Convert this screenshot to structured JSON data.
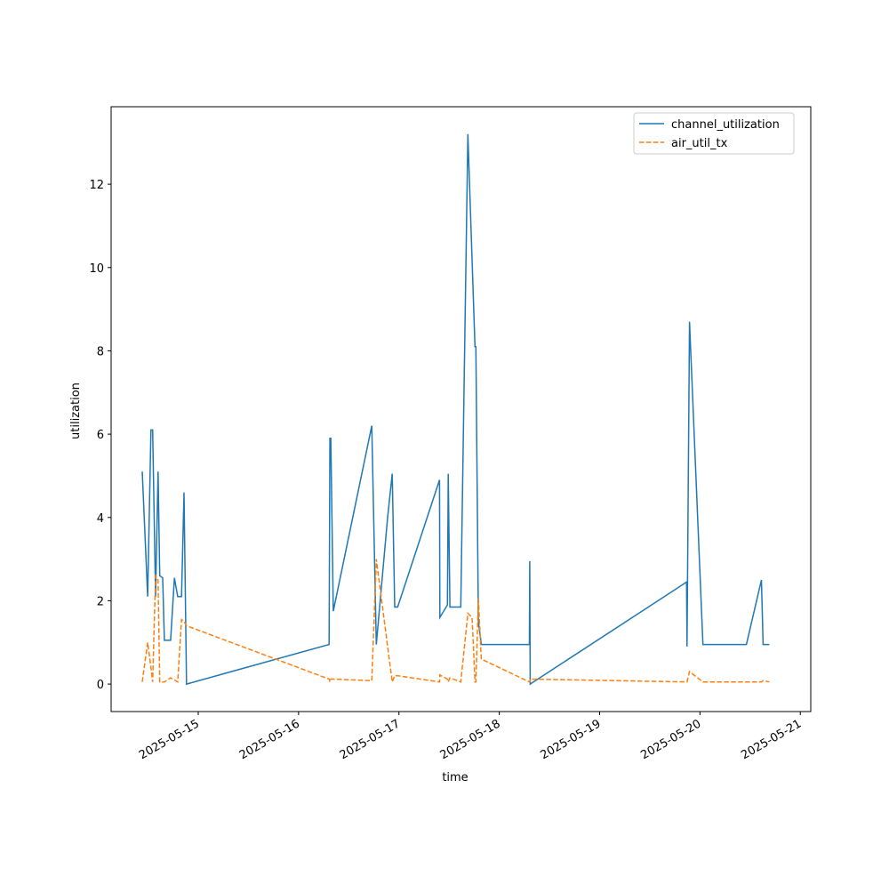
{
  "chart_data": {
    "type": "line",
    "xlabel": "time",
    "ylabel": "utilization",
    "x": [
      "2025-05-14T10:36",
      "2025-05-14T11:54",
      "2025-05-14T12:42",
      "2025-05-14T13:06",
      "2025-05-14T13:48",
      "2025-05-14T14:24",
      "2025-05-14T14:48",
      "2025-05-14T15:30",
      "2025-05-14T15:54",
      "2025-05-14T17:24",
      "2025-05-14T18:18",
      "2025-05-14T19:06",
      "2025-05-14T20:00",
      "2025-05-14T20:36",
      "2025-05-14T21:12",
      "2025-05-16T07:18",
      "2025-05-16T07:30",
      "2025-05-16T07:42",
      "2025-05-16T08:18",
      "2025-05-16T17:30",
      "2025-05-16T18:36",
      "2025-05-16T21:18",
      "2025-05-16T22:24",
      "2025-05-16T23:00",
      "2025-05-16T23:42",
      "2025-05-17T09:42",
      "2025-05-17T09:48",
      "2025-05-17T11:36",
      "2025-05-17T11:48",
      "2025-05-17T12:12",
      "2025-05-17T14:48",
      "2025-05-17T16:30",
      "2025-05-17T17:30",
      "2025-05-17T18:12",
      "2025-05-17T18:24",
      "2025-05-17T19:00",
      "2025-05-17T19:42",
      "2025-05-18T07:12",
      "2025-05-18T07:18",
      "2025-05-18T07:24",
      "2025-05-19T20:48",
      "2025-05-19T20:54",
      "2025-05-19T21:30",
      "2025-05-20T00:42",
      "2025-05-20T11:06",
      "2025-05-20T14:42",
      "2025-05-20T15:06",
      "2025-05-20T16:36"
    ],
    "series": [
      {
        "name": "channel_utilization",
        "color": "#1f77b4",
        "dash": "solid",
        "values": [
          5.1,
          2.1,
          6.1,
          6.1,
          2.1,
          5.1,
          2.6,
          2.55,
          1.05,
          1.05,
          2.55,
          2.1,
          2.1,
          4.6,
          0,
          0.95,
          5.9,
          5.9,
          1.75,
          6.2,
          0.95,
          4.0,
          5.05,
          1.85,
          1.85,
          4.9,
          1.6,
          1.9,
          5.05,
          1.85,
          1.85,
          13.2,
          10.2,
          8.1,
          8.1,
          1.5,
          0.95,
          0.95,
          2.95,
          0,
          2.45,
          0.9,
          8.7,
          0.95,
          0.95,
          2.5,
          0.95,
          0.95
        ]
      },
      {
        "name": "air_util_tx",
        "color": "#ff7f0e",
        "dash": "dashed",
        "values": [
          0.05,
          1.0,
          0.4,
          0.05,
          2.6,
          2.5,
          0.05,
          0.05,
          0.05,
          0.15,
          0.1,
          0.05,
          1.55,
          1.5,
          1.4,
          0.12,
          0.05,
          0.12,
          0.12,
          0.08,
          3.0,
          0.9,
          0.05,
          0.2,
          0.2,
          0.05,
          0.22,
          0.12,
          0.05,
          0.15,
          0.05,
          1.7,
          1.6,
          0.05,
          0.05,
          2.05,
          0.6,
          0.05,
          0.05,
          0.12,
          0.05,
          0.05,
          0.3,
          0.05,
          0.05,
          0.05,
          0.08,
          0.05
        ]
      }
    ],
    "xlim": [
      "2025-05-14T03:10",
      "2025-05-21T02:30"
    ],
    "xticks": [
      "2025-05-15",
      "2025-05-16",
      "2025-05-17",
      "2025-05-18",
      "2025-05-19",
      "2025-05-20",
      "2025-05-21"
    ],
    "ylim": [
      -0.66,
      13.86
    ],
    "yticks": [
      0,
      2,
      4,
      6,
      8,
      10,
      12
    ],
    "legend": "upper right"
  }
}
